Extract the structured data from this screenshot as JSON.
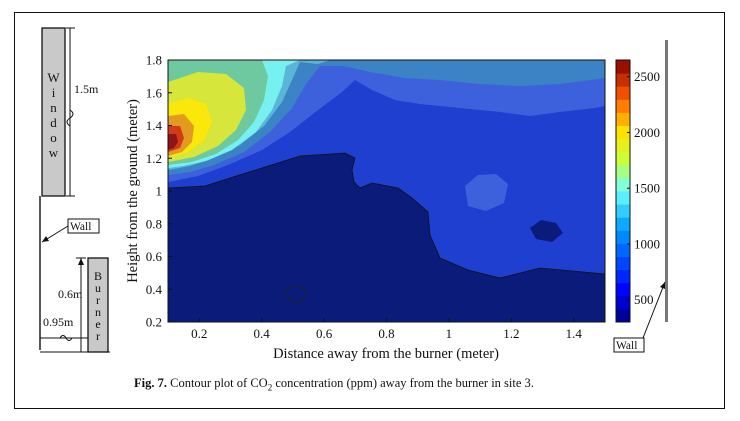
{
  "figure": {
    "caption_prefix": "Fig. 7.",
    "caption_before_formula": "Contour plot of CO",
    "caption_subscript": "2",
    "caption_after_formula": " concentration (ppm) away from the burner in site 3."
  },
  "schematic": {
    "window_letters": [
      "W",
      "i",
      "n",
      "d",
      "o",
      "w"
    ],
    "window_height_label": "1.5m",
    "wall_label": "Wall",
    "burner_letters": [
      "B",
      "u",
      "r",
      "n",
      "e",
      "r"
    ],
    "burner_height_label": "0.6m",
    "burner_distance_label": "0.95m",
    "right_wall_label": "Wall"
  },
  "chart_data": {
    "type": "heatmap",
    "subtype": "filled-contour",
    "title": "",
    "xlabel": "Distance away from the burner (meter)",
    "ylabel": "Height from the ground (meter)",
    "xlim": [
      0.1,
      1.5
    ],
    "ylim": [
      0.2,
      1.8
    ],
    "xticks": [
      0.2,
      0.4,
      0.6,
      0.8,
      1,
      1.2,
      1.4
    ],
    "yticks": [
      0.2,
      0.4,
      0.6,
      0.8,
      1,
      1.2,
      1.4,
      1.6,
      1.8
    ],
    "xtick_labels": [
      "0.2",
      "0.4",
      "0.6",
      "0.8",
      "1",
      "1.2",
      "1.4"
    ],
    "ytick_labels": [
      "0.2",
      "0.4",
      "0.6",
      "0.8",
      "1",
      "1.2",
      "1.4",
      "1.6",
      "1.8"
    ],
    "value_unit": "ppm",
    "colorbar": {
      "range": [
        300,
        2650
      ],
      "ticks": [
        500,
        1000,
        1500,
        2000,
        2500
      ],
      "tick_labels": [
        "500",
        "1000",
        "1500",
        "2000",
        "2500"
      ],
      "colormap": "jet"
    },
    "levels": [
      500,
      700,
      900,
      1100,
      1300,
      1500,
      1700,
      1900,
      2100,
      2300,
      2500
    ],
    "regions": [
      {
        "min_ppm": 300,
        "max_ppm": 500,
        "description": "lower half of the room (height below ~1.0 m) and a pocket near x≈1.3, y≈0.78",
        "approx_ppm": 420
      },
      {
        "min_ppm": 500,
        "max_ppm": 700,
        "description": "middle band from x≈0.5 to 1.5, heights ~0.5–1.5 m",
        "approx_ppm": 600
      },
      {
        "min_ppm": 700,
        "max_ppm": 900,
        "description": "upper right region and island near x≈1.1, y≈1.0",
        "approx_ppm": 800
      },
      {
        "min_ppm": 1100,
        "max_ppm": 1500,
        "description": "plume near x≈0.4–0.5 above 1.3 m",
        "approx_ppm": 1200
      },
      {
        "min_ppm": 1500,
        "max_ppm": 1900,
        "description": "plume core near x≈0.2–0.3, y≈1.4–1.6",
        "approx_ppm": 1700
      },
      {
        "min_ppm": 2100,
        "max_ppm": 2600,
        "description": "peak near the window at x≈0.1, y≈1.25",
        "approx_ppm": 2550
      }
    ],
    "peak": {
      "x": 0.1,
      "y": 1.25,
      "ppm": 2550
    }
  }
}
